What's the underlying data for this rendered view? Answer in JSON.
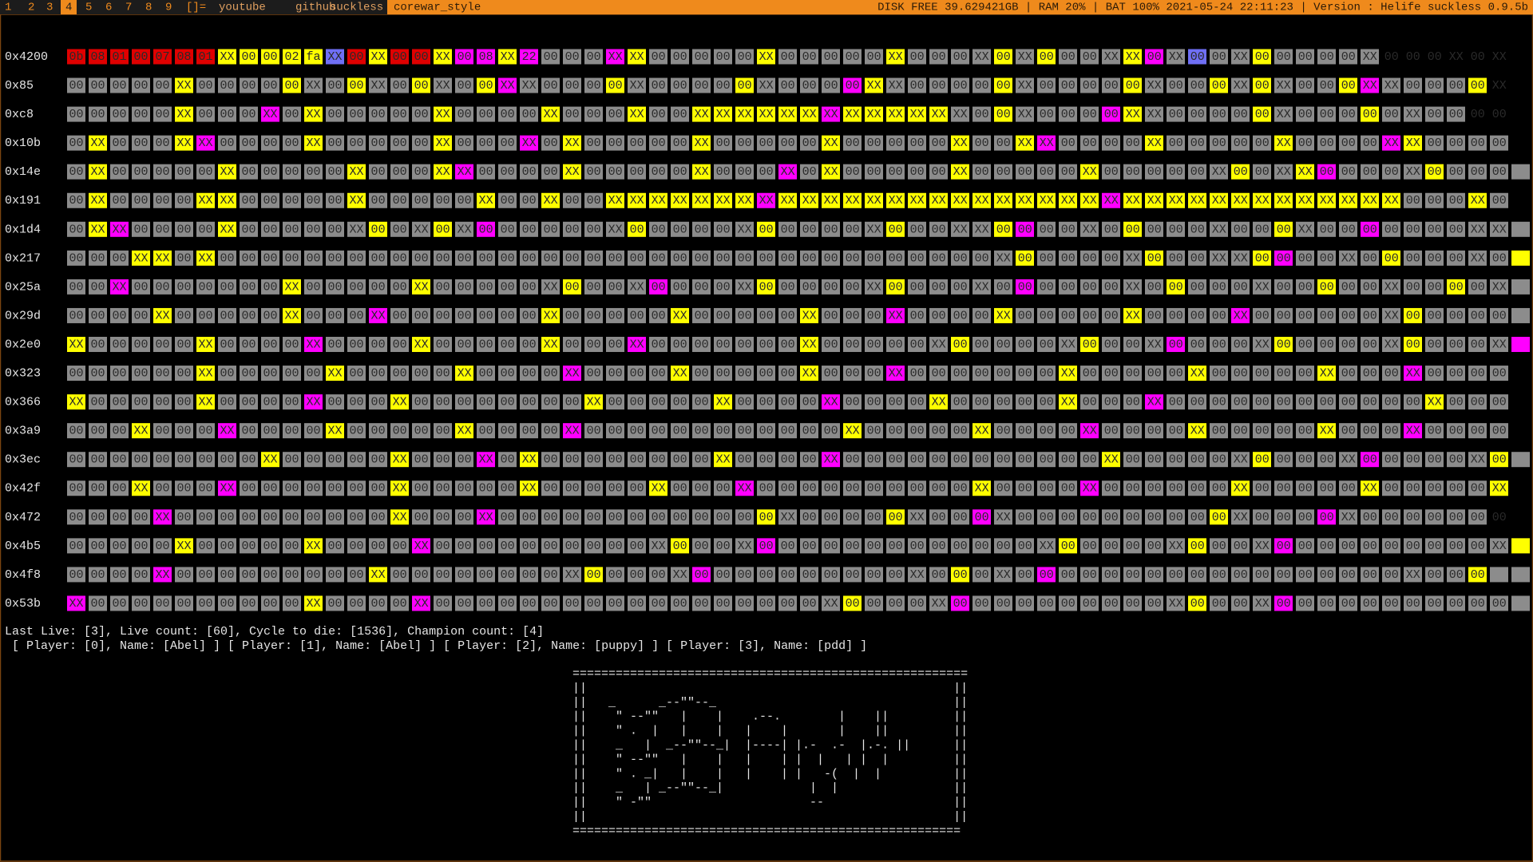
{
  "topbar": {
    "tags": [
      "1",
      "2",
      "3",
      "4",
      "5",
      "6",
      "7",
      "8",
      "9"
    ],
    "layout": "[]=",
    "links": [
      "youtube",
      "github",
      "suckless"
    ],
    "window_title": "corewar_style",
    "status": "DISK FREE 39.629421GB | RAM 20% | BAT 100% 2021-05-24 22:11:23 | Version : Helife suckless 0.9.5b"
  },
  "grid": {
    "palette": {
      "g": "#8c8c8c",
      "y": "#ffff00",
      "m": "#ff00ff",
      "r": "#e00000",
      "b": "#6f6ff5"
    },
    "rows": [
      {
        "address": "0x4200",
        "colors": "rrrrrrryyyyybryrrymmymgggmygggggygggggyggggygygggymgbggyggggg",
        "cells": "0b 08 01 00 07 08 01 XX 00 00 02 fa XX 00 XX 00 00 XX 00 08 XX 22 00 00 00 XX XX 00 00 00 00 00 XX 00 00 00 00 00 XX 00 00 00 XX 00 XX 00 00 00 XX XX 00 XX 00 00 XX 00 00 00 00 00 XX 00 00 00 XX 00 XX"
      },
      {
        "address": "0x85",
        "colors": "gggggyggggyggyggyggymggggygggggyggggmygggggygggggygggygygggymggggy",
        "cells": "00 00 00 00 00 XX 00 00 00 00 00 XX 00 00 XX 00 00 XX 00 00 XX XX 00 00 00 00 XX 00 00 00 00 00 XX 00 00 00 00 XX XX 00 00 00 00 00 XX 00 00 00 00 00 XX 00 00 00 XX 00 XX 00 00 00 XX XX 00 00 00 00 XX"
      },
      {
        "address": "0xc8",
        "colors": "gggggygggmgygggggyggggygggyggyyyyyymyyyyyggyggggmygggggyggggygggg",
        "cells": "00 00 00 00 00 XX 00 00 00 XX 00 XX 00 00 00 00 00 XX 00 00 00 00 XX 00 00 00 XX 00 00 XX XX XX XX XX XX XX XX XX XX XX XX XX 00 00 XX 00 00 00 00 XX XX 00 00 00 00 00 XX 00 00 00 00 00 XX 00 00 00 00"
      },
      {
        "address": "0x10b",
        "colors": "gygggymggggygggggygggmgygggggygggggygggggyggymggggygggggyggggmygggg",
        "cells": "00 XX 00 00 00 XX XX 00 00 00 00 XX 00 00 00 00 00 XX 00 00 00 XX 00 XX 00 00 00 00 00 XX 00 00 00 00 00 XX 00 00 00 00 00 XX 00 00 XX XX 00 00 00 00 XX 00 00 00 00 00 XX 00 00 00 00 XX XX 00 00 00 00"
      },
      {
        "address": "0x14e",
        "colors": "gygggggygggggygggymggggygggggygggmgygggggygggggyggggggyggymggggygggg",
        "cells": "00 XX 00 00 00 00 00 XX 00 00 00 00 00 XX 00 00 00 XX XX 00 00 00 00 XX 00 00 00 00 00 XX 00 00 00 XX 00 XX 00 00 00 00 00 XX 00 00 00 00 00 XX 00 00 00 00 00 XX 00 00 XX XX 00 00 00 00 XX 00 00 00 00"
      },
      {
        "address": "0x191",
        "colors": "gyggggyygggggygggggyggyggyyyyyyymyyyyyyyyyyyyyyymyyyyyyyyyyyyygggyg",
        "cells": "00 XX 00 00 00 00 XX XX 00 00 00 00 00 XX 00 00 00 00 00 XX 00 00 XX 00 00 XX XX XX XX XX XX XX XX XX XX XX XX XX XX XX XX XX XX XX XX XX XX XX XX XX XX XX XX XX XX XX XX XX XX XX XX XX 00 00 00 XX 00"
      },
      {
        "address": "0x1d4",
        "colors": "gymggggyggggggyggygmggggggygggggygggggyggggymggggyggggggygggmgggggggmy",
        "cells": "00 XX XX 00 00 00 00 XX 00 00 00 00 00 XX 00 00 XX 00 XX 00 00 00 00 00 00 XX 00 00 00 00 00 XX 00 00 00 00 00 XX 00 00 00 XX XX 00 00 00 00 XX 00 00 00 00 00 XX 00 00 00 XX 00 00 00 00 00 00 00 XX XX"
      },
      {
        "address": "0x217",
        "colors": "gggyygygggggggggggggggggggggggggggggggggggggygggggyggggymggggygggggyg",
        "cells": "00 00 00 XX XX 00 XX 00 00 00 00 00 00 00 00 00 00 00 00 00 00 00 00 00 00 00 00 00 00 00 00 00 00 00 00 00 00 00 00 00 00 00 00 XX 00 00 00 00 00 XX 00 00 00 XX XX 00 00 00 00 XX 00 00 00 00 00 XX 00"
      },
      {
        "address": "0x25a",
        "colors": "ggmgggggggygggggyggggggygggmggggygggggygggggmggggggyggggggygggggyggggm",
        "cells": "00 00 XX 00 00 00 00 00 00 00 XX 00 00 00 00 00 XX 00 00 00 00 00 XX 00 00 00 XX 00 00 00 00 XX 00 00 00 00 00 XX 00 00 00 00 XX 00 00 00 00 00 00 XX 00 00 00 00 00 XX 00 00 00 00 00 XX 00 00 00 00 XX"
      },
      {
        "address": "0x29d",
        "colors": "ggggygggggygggmgggggggygggggygggggygggmggggygggggyggggmgggggggyggggg",
        "cells": "00 00 00 00 XX 00 00 00 00 00 XX 00 00 00 XX 00 00 00 00 00 00 00 XX 00 00 00 00 00 XX 00 00 00 00 00 XX 00 00 00 XX 00 00 00 00 XX 00 00 00 00 00 XX 00 00 00 00 XX 00 00 00 00 00 00 XX 00 00 00 00 00"
      },
      {
        "address": "0x2e0",
        "colors": "ygggggyggggmggggygggggygggmgggggggyggggggygggggygggmggggygggggyggggm",
        "cells": "XX 00 00 00 00 00 XX 00 00 00 00 XX 00 00 00 00 XX 00 00 00 00 00 XX 00 00 00 XX 00 00 00 00 00 00 00 XX 00 00 00 00 00 XX 00 00 00 00 00 XX 00 00 00 XX 00 00 00 00 XX 00 00 00 00 00 XX 00 00 00 00 XX"
      },
      {
        "address": "0x323",
        "colors": "ggggggygggggygggggygggg mggggygggggygggmgggggggyggggg ygggggyggg mgggg",
        "cells": "00 00 00 00 00 00 XX 00 00 00 00 00 XX 00 00 00 00 00 XX 00 00 00 00 XX 00 00 00 00 XX 00 00 00 00 00 XX 00 00 00 XX 00 00 00 00 00 00 00 XX 00 00 00 00 00 XX 00 00 00 00 00 XX 00 00 00 XX 00 00 00 00"
      },
      {
        "address": "0x366",
        "colors": "ygggggyggggmgggyggggggggyggggg yggggmggggygggggygggmggggggggggggyggg",
        "cells": "XX 00 00 00 00 00 XX 00 00 00 00 XX 00 00 00 XX 00 00 00 00 00 00 00 00 XX 00 00 00 00 00 XX 00 00 00 00 XX 00 00 00 00 XX 00 00 00 00 00 XX 00 00 00 XX 00 00 00 00 00 00 00 00 00 00 00 00 XX 00 00 00"
      },
      {
        "address": "0x3a9",
        "colors": "gggygggmggggygggggyggggmggggggggggggyggggg yggggmggggygggggygggmgggg",
        "cells": "00 00 00 XX 00 00 00 XX 00 00 00 00 XX 00 00 00 00 00 XX 00 00 00 00 XX 00 00 00 00 00 00 00 00 00 00 00 00 XX 00 00 00 00 00 XX 00 00 00 00 XX 00 00 00 00 XX 00 00 00 00 00 XX 00 00 00 XX 00 00 00 00"
      },
      {
        "address": "0x3ec",
        "colors": "gggggggggygggggygggmgygggggggg yggggmggggggggggggyggggggyggggmgggggyg",
        "cells": "00 00 00 00 00 00 00 00 00 XX 00 00 00 00 00 XX 00 00 00 XX 00 XX 00 00 00 00 00 00 00 00 XX 00 00 00 00 XX 00 00 00 00 00 00 00 00 00 00 00 00 XX 00 00 00 00 00 XX 00 00 00 00 XX 00 00 00 00 00 XX 00"
      },
      {
        "address": "0x42f",
        "colors": "gggygggmgggggggygggggygggggyggg mggggggggggyggggmggggggygggggygggggy",
        "cells": "00 00 00 XX 00 00 00 XX 00 00 00 00 00 00 00 XX 00 00 00 00 00 XX 00 00 00 00 00 XX 00 00 00 XX 00 00 00 00 00 00 00 00 00 00 XX 00 00 00 00 XX 00 00 00 00 00 00 XX 00 00 00 00 00 XX 00 00 00 00 00 XX"
      },
      {
        "address": "0x472",
        "colors": "ggggmggggggggggyggg mggggggggggggygggggyggg mggggggggggyggggmggggggg",
        "cells": "00 00 00 00 XX 00 00 00 00 00 00 00 00 00 00 XX 00 00 00 XX 00 00 00 00 00 00 00 00 00 00 00 00 00 XX 00 00 00 00 00 XX 00 00 00 XX 00 00 00 00 00 00 00 00 00 00 XX 00 00 00 00 XX 00 00 00 00 00 00 00"
      },
      {
        "address": "0x4b5",
        "colors": "gggggygggggyggggmgggggggggggyggg mgggggggggggggyggggg ygggmggggggggggy",
        "cells": "00 00 00 00 00 XX 00 00 00 00 00 XX 00 00 00 00 XX 00 00 00 00 00 00 00 00 00 00 XX 00 00 00 XX 00 00 00 00 00 00 00 00 00 00 00 00 00 XX 00 00 00 00 00 XX 00 00 00 XX 00 00 00 00 00 00 00 00 00 00 XX"
      },
      {
        "address": "0x4f8",
        "colors": "ggggmggggggggg ygggggggggyggggmggggggggggg ygggmgggggggggggggggggggyggg",
        "cells": "00 00 00 00 XX 00 00 00 00 00 00 00 00 00 XX 00 00 00 00 00 00 00 00 XX 00 00 00 00 XX 00 00 00 00 00 00 00 00 00 00 XX 00 00 00 XX 00 00 00 00 00 00 00 00 00 00 00 00 00 00 00 00 00 00 XX 00 00 00"
      },
      {
        "address": "0x53b",
        "colors": "mggggggggggyggggmgggggggggggggggggggyggggmggggggggggygggmggggggggggg",
        "cells": "XX 00 00 00 00 00 00 00 00 00 00 XX 00 00 00 00 XX 00 00 00 00 00 00 00 00 00 00 00 00 00 00 00 00 00 00 XX 00 00 00 00 XX 00 00 00 00 00 00 00 00 00 00 XX 00 00 00 XX 00 00 00 00 00 00 00 00 00 00 00"
      }
    ]
  },
  "info": {
    "line1": "Last Live: [3], Live count: [60], Cycle to die: [1536], Champion count: [4]",
    "line2": " [ Player: [0], Name: [Abel] ] [ Player: [1], Name: [Abel] ] [ Player: [2], Name: [puppy] ] [ Player: [3], Name: [pdd] ]"
  },
  "logo": {
    "lines": [
      "=======================================================",
      "||                                                   ||",
      "||   _      _--\"\"--_                                 ||",
      "||    \" --\"\"   |    |    .--.        |    ||         ||",
      "||    \" .  |   |    |   |    |       |    ||         ||",
      "||    _   |  _--\"\"--_|  |----| |.-  .-  |.-. ||      ||",
      "||    \" --\"\"   |    |   |    | |  |   | |  |         ||",
      "||    \" . _|   |    |   |    | |   -(  |  |          ||",
      "||    _   | _--\"\"--_|            |  |                ||",
      "||    \" -\"\"                      --                  ||",
      "||                                                   ||",
      "======================================================"
    ]
  }
}
